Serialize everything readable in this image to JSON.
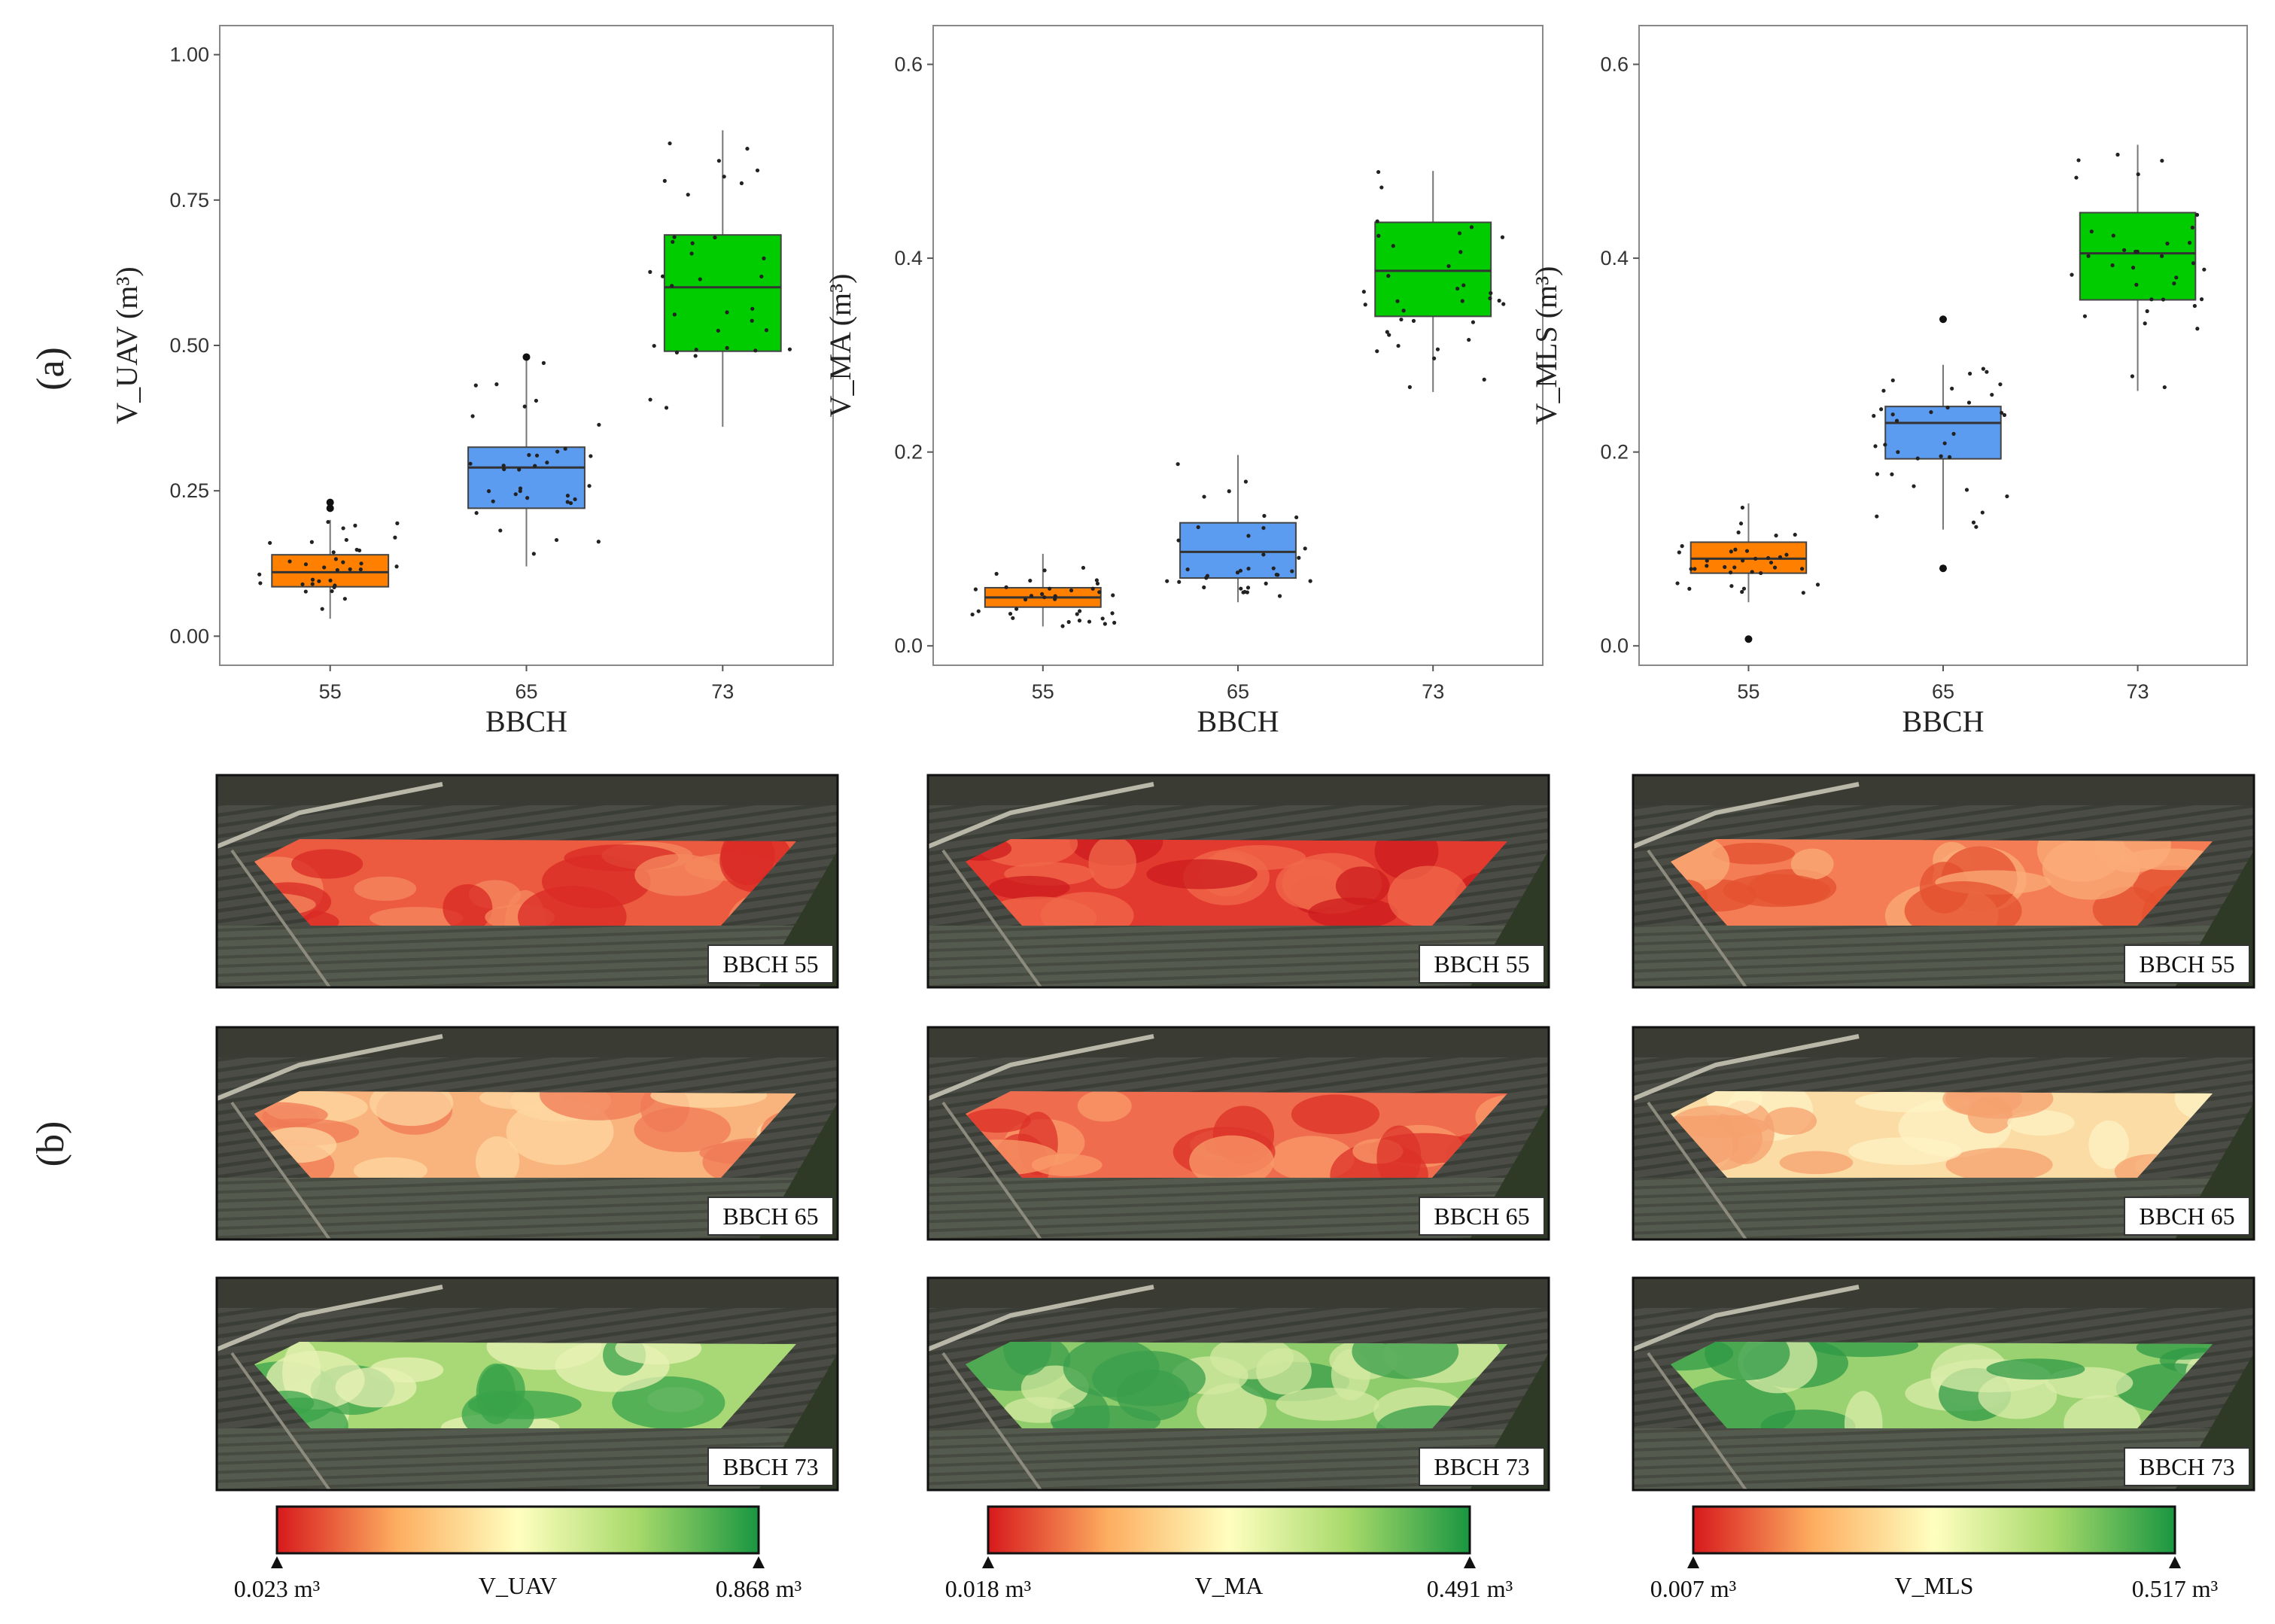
{
  "figure": {
    "panel_a_label": "(a)",
    "panel_b_label": "(b)"
  },
  "chart_data": [
    {
      "type": "box",
      "xlabel": "BBCH",
      "ylabel": "V_UAV (m³)",
      "ylim": [
        -0.05,
        1.05
      ],
      "yticks": [
        "0.00",
        "0.25",
        "0.50",
        "0.75",
        "1.00"
      ],
      "categories": [
        "55",
        "65",
        "73"
      ],
      "boxes": [
        {
          "category": "55",
          "color": "#ff8000",
          "min": 0.03,
          "q1": 0.085,
          "median": 0.11,
          "q3": 0.14,
          "max": 0.2,
          "outliers": [
            0.22,
            0.23
          ]
        },
        {
          "category": "65",
          "color": "#5b9bf0",
          "min": 0.12,
          "q1": 0.22,
          "median": 0.29,
          "q3": 0.325,
          "max": 0.48,
          "outliers": [
            0.48
          ]
        },
        {
          "category": "73",
          "color": "#00cc00",
          "min": 0.36,
          "q1": 0.49,
          "median": 0.6,
          "q3": 0.69,
          "max": 0.87,
          "outliers": []
        }
      ],
      "grid": false
    },
    {
      "type": "box",
      "xlabel": "BBCH",
      "ylabel": "V_MA (m³)",
      "ylim": [
        -0.02,
        0.64
      ],
      "yticks": [
        "0.0",
        "0.2",
        "0.4",
        "0.6"
      ],
      "categories": [
        "55",
        "65",
        "73"
      ],
      "boxes": [
        {
          "category": "55",
          "color": "#ff8000",
          "min": 0.02,
          "q1": 0.04,
          "median": 0.05,
          "q3": 0.06,
          "max": 0.095,
          "outliers": []
        },
        {
          "category": "65",
          "color": "#5b9bf0",
          "min": 0.045,
          "q1": 0.07,
          "median": 0.097,
          "q3": 0.127,
          "max": 0.197,
          "outliers": []
        },
        {
          "category": "73",
          "color": "#00cc00",
          "min": 0.262,
          "q1": 0.34,
          "median": 0.387,
          "q3": 0.437,
          "max": 0.49,
          "outliers": []
        }
      ],
      "grid": false
    },
    {
      "type": "box",
      "xlabel": "BBCH",
      "ylabel": "V_MLS (m³)",
      "ylim": [
        -0.02,
        0.64
      ],
      "yticks": [
        "0.0",
        "0.2",
        "0.4",
        "0.6"
      ],
      "categories": [
        "55",
        "65",
        "73"
      ],
      "boxes": [
        {
          "category": "55",
          "color": "#ff8000",
          "min": 0.045,
          "q1": 0.075,
          "median": 0.09,
          "q3": 0.107,
          "max": 0.147,
          "outliers": [
            0.007
          ]
        },
        {
          "category": "65",
          "color": "#5b9bf0",
          "min": 0.12,
          "q1": 0.193,
          "median": 0.23,
          "q3": 0.247,
          "max": 0.29,
          "outliers": [
            0.08,
            0.337
          ]
        },
        {
          "category": "73",
          "color": "#00cc00",
          "min": 0.263,
          "q1": 0.357,
          "median": 0.405,
          "q3": 0.447,
          "max": 0.517,
          "outliers": []
        }
      ],
      "grid": false
    }
  ],
  "maps": {
    "columns": [
      {
        "variable": "V_UAV",
        "legend": {
          "min_label": "0.023 m³",
          "variable_label": "V_UAV",
          "max_label": "0.868 m³",
          "colors": [
            "#d7191c",
            "#fdae61",
            "#ffffbf",
            "#a6d96a",
            "#1a9641"
          ]
        },
        "tiles": [
          {
            "stage_label": "BBCH 55",
            "fill": "#ec5a3f",
            "tint": "#f68a5f",
            "dark": "#da2a26"
          },
          {
            "stage_label": "BBCH 65",
            "fill": "#f9b47d",
            "tint": "#fdd7a0",
            "dark": "#f07a55"
          },
          {
            "stage_label": "BBCH 73",
            "fill": "#a9d977",
            "tint": "#e8f1b4",
            "dark": "#3aa34a"
          }
        ]
      },
      {
        "variable": "V_MA",
        "legend": {
          "min_label": "0.018 m³",
          "variable_label": "V_MA",
          "max_label": "0.491 m³",
          "colors": [
            "#d7191c",
            "#fdae61",
            "#ffffbf",
            "#a6d96a",
            "#1a9641"
          ]
        },
        "tiles": [
          {
            "stage_label": "BBCH 55",
            "fill": "#e33a30",
            "tint": "#f0684a",
            "dark": "#cc1c1e"
          },
          {
            "stage_label": "BBCH 65",
            "fill": "#ef6d4e",
            "tint": "#f99b6a",
            "dark": "#dc3128"
          },
          {
            "stage_label": "BBCH 73",
            "fill": "#8fcc6c",
            "tint": "#d4eaa0",
            "dark": "#3a9d4b"
          }
        ]
      },
      {
        "variable": "V_MLS",
        "legend": {
          "min_label": "0.007 m³",
          "variable_label": "V_MLS",
          "max_label": "0.517 m³",
          "colors": [
            "#d7191c",
            "#fdae61",
            "#ffffbf",
            "#a6d96a",
            "#1a9641"
          ]
        },
        "tiles": [
          {
            "stage_label": "BBCH 55",
            "fill": "#f47d56",
            "tint": "#fbac78",
            "dark": "#e4502f"
          },
          {
            "stage_label": "BBCH 65",
            "fill": "#fcdca5",
            "tint": "#fff3c4",
            "dark": "#f5a16f"
          },
          {
            "stage_label": "BBCH 73",
            "fill": "#9bd271",
            "tint": "#d9ecaa",
            "dark": "#2f9a45"
          }
        ]
      }
    ]
  }
}
